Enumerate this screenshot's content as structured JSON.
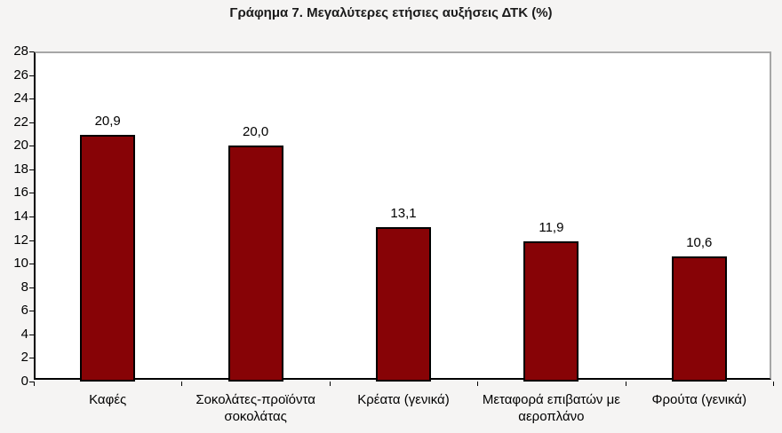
{
  "page": {
    "background": "#f5f4f3"
  },
  "chart_data": {
    "type": "bar",
    "title": "Γράφημα 7. Μεγαλύτερες ετήσιες αυξήσεις ΔΤΚ (%)",
    "categories": [
      "Καφές",
      "Σοκολάτες-προϊόντα σοκολάτας",
      "Κρέατα (γενικά)",
      "Μεταφορά επιβατών με αεροπλάνο",
      "Φρούτα (γενικά)"
    ],
    "values": [
      20.9,
      20.0,
      13.1,
      11.9,
      10.6
    ],
    "value_labels": [
      "20,9",
      "20,0",
      "13,1",
      "11,9",
      "10,6"
    ],
    "xlabel": "",
    "ylabel": "",
    "ylim": [
      0,
      28
    ],
    "ytick_step": 2,
    "ytick_labels": [
      "0",
      "2",
      "4",
      "6",
      "8",
      "10",
      "12",
      "14",
      "16",
      "18",
      "20",
      "22",
      "24",
      "26",
      "28"
    ],
    "grid": false,
    "legend": "none",
    "bar_color": "#870306",
    "bar_border_color": "#000000",
    "axis_color": "#000000",
    "plot_border_color": "#a6a6a6",
    "plot_background": "#ffffff"
  }
}
